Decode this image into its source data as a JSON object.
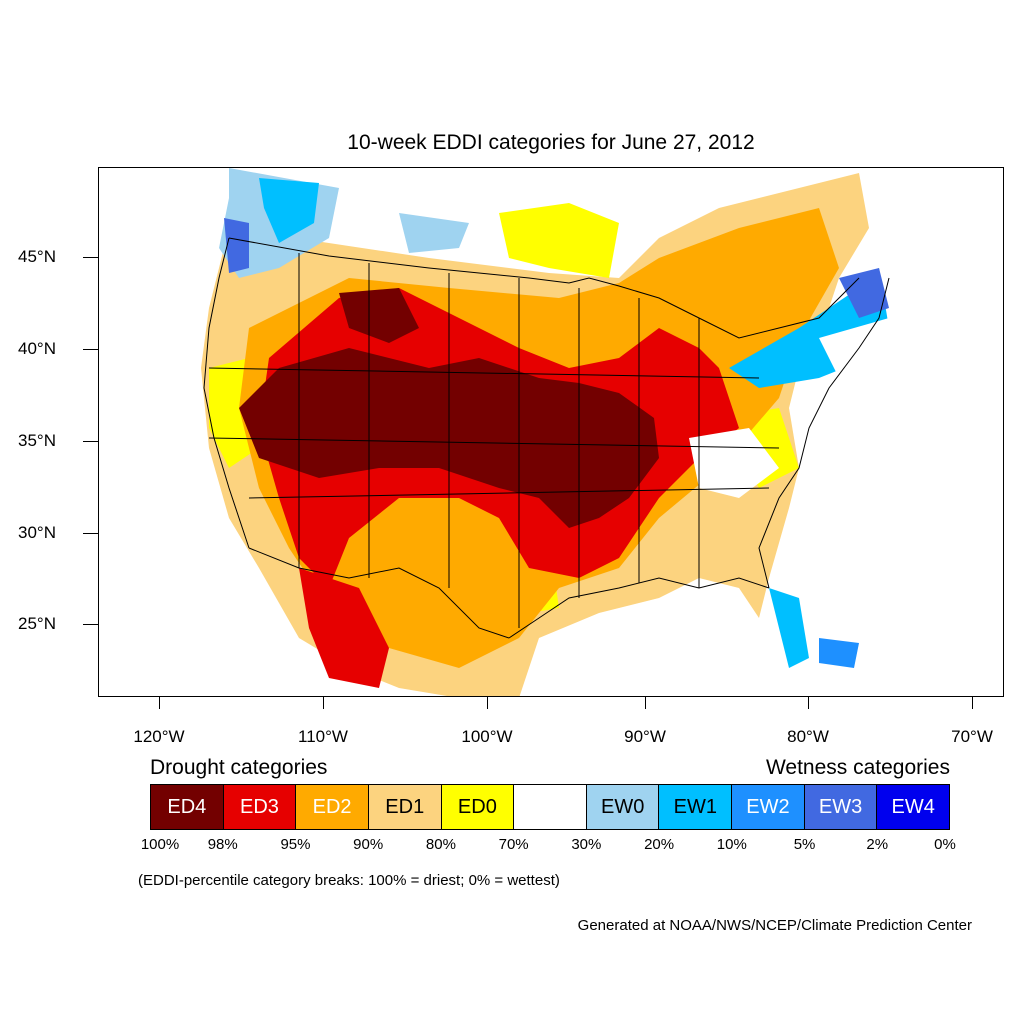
{
  "title": "10-week EDDI categories for June 27, 2012",
  "lat_labels": [
    "45°N",
    "40°N",
    "35°N",
    "30°N",
    "25°N"
  ],
  "lon_labels": [
    "120°W",
    "110°W",
    "100°W",
    "90°W",
    "80°W",
    "70°W"
  ],
  "legend": {
    "drought_heading": "Drought categories",
    "wetness_heading": "Wetness categories",
    "categories": [
      {
        "label": "ED4",
        "color": "#730000",
        "text_color": "#ffffff"
      },
      {
        "label": "ED3",
        "color": "#e60000",
        "text_color": "#ffffff"
      },
      {
        "label": "ED2",
        "color": "#ffaa00",
        "text_color": "#ffffff"
      },
      {
        "label": "ED1",
        "color": "#fcd37f",
        "text_color": "#000000"
      },
      {
        "label": "ED0",
        "color": "#ffff00",
        "text_color": "#000000"
      },
      {
        "label": "",
        "color": "#ffffff",
        "text_color": "#000000"
      },
      {
        "label": "EW0",
        "color": "#9fd3f0",
        "text_color": "#000000"
      },
      {
        "label": "EW1",
        "color": "#00bfff",
        "text_color": "#000000"
      },
      {
        "label": "EW2",
        "color": "#1e90ff",
        "text_color": "#ffffff"
      },
      {
        "label": "EW3",
        "color": "#4169e1",
        "text_color": "#ffffff"
      },
      {
        "label": "EW4",
        "color": "#0000ee",
        "text_color": "#ffffff"
      }
    ],
    "breaks": [
      "100%",
      "98%",
      "95%",
      "90%",
      "80%",
      "70%",
      "30%",
      "20%",
      "10%",
      "5%",
      "2%",
      "0%"
    ]
  },
  "note": "(EDDI-percentile category breaks: 100% = driest; 0% = wettest)",
  "credit": "Generated at NOAA/NWS/NCEP/Climate Prediction Center"
}
